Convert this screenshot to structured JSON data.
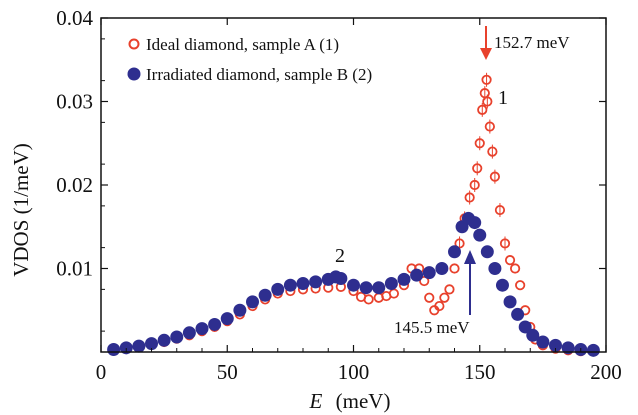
{
  "chart_data": {
    "type": "scatter",
    "xlabel_var": "E",
    "xlabel_unit": "(meV)",
    "ylabel": "VDOS  (1/meV)",
    "xlim": [
      0,
      200
    ],
    "ylim": [
      0,
      0.04
    ],
    "xticks": [
      "0",
      "50",
      "100",
      "150",
      "200"
    ],
    "yticks": [
      "0.01",
      "0.02",
      "0.03",
      "0.04"
    ],
    "xtick_values": [
      0,
      50,
      100,
      150,
      200
    ],
    "ytick_values": [
      0.01,
      0.02,
      0.03,
      0.04
    ],
    "legend_position": "top-left",
    "series": [
      {
        "name": "Ideal diamond, sample A (1)",
        "marker": "open-circle",
        "color": "#e8412c",
        "x": [
          5,
          10,
          15,
          20,
          25,
          30,
          35,
          40,
          45,
          50,
          55,
          60,
          65,
          70,
          75,
          80,
          85,
          90,
          95,
          100,
          103,
          106,
          110,
          113,
          116,
          120,
          123,
          126,
          128,
          130,
          132,
          134,
          136,
          138,
          140,
          142,
          144,
          146,
          148,
          149,
          150,
          151,
          152,
          152.7,
          153,
          154,
          155,
          156,
          158,
          160,
          162,
          164,
          166,
          168,
          170,
          172,
          175,
          180,
          185,
          190,
          195
        ],
        "y": [
          0.0002,
          0.0004,
          0.0006,
          0.0009,
          0.0012,
          0.0016,
          0.002,
          0.0025,
          0.003,
          0.0037,
          0.0045,
          0.0055,
          0.0063,
          0.007,
          0.0073,
          0.0075,
          0.0076,
          0.0077,
          0.0078,
          0.0073,
          0.0066,
          0.0063,
          0.0065,
          0.0067,
          0.007,
          0.008,
          0.01,
          0.01,
          0.0085,
          0.0065,
          0.005,
          0.0055,
          0.0065,
          0.0075,
          0.01,
          0.013,
          0.016,
          0.0185,
          0.02,
          0.022,
          0.025,
          0.029,
          0.031,
          0.0326,
          0.03,
          0.027,
          0.024,
          0.021,
          0.017,
          0.013,
          0.011,
          0.01,
          0.008,
          0.005,
          0.003,
          0.0015,
          0.0008,
          0.0004,
          0.0002,
          0.0001,
          0.0001
        ]
      },
      {
        "name": "Irradiated diamond, sample B (2)",
        "marker": "filled-circle",
        "color": "#2e2e8f",
        "x": [
          5,
          10,
          15,
          20,
          25,
          30,
          35,
          40,
          45,
          50,
          55,
          60,
          65,
          70,
          75,
          80,
          85,
          90,
          93,
          95,
          100,
          105,
          110,
          115,
          120,
          125,
          130,
          135,
          140,
          143,
          145.5,
          148,
          150,
          153,
          156,
          159,
          162,
          165,
          168,
          171,
          175,
          180,
          185,
          190,
          195
        ],
        "y": [
          0.0003,
          0.0005,
          0.0007,
          0.001,
          0.0014,
          0.0018,
          0.0023,
          0.0028,
          0.0033,
          0.004,
          0.005,
          0.006,
          0.0068,
          0.0075,
          0.008,
          0.0082,
          0.0084,
          0.0087,
          0.009,
          0.0088,
          0.008,
          0.0077,
          0.0077,
          0.0082,
          0.0087,
          0.0092,
          0.0095,
          0.01,
          0.012,
          0.015,
          0.016,
          0.0155,
          0.014,
          0.012,
          0.01,
          0.008,
          0.006,
          0.0045,
          0.003,
          0.002,
          0.0012,
          0.0008,
          0.0005,
          0.0003,
          0.0002
        ]
      }
    ],
    "annotations": {
      "peak1_value": "152.7 meV",
      "peak1_label": "1",
      "peak2_value": "145.5 meV",
      "peak2_label": "2"
    }
  }
}
